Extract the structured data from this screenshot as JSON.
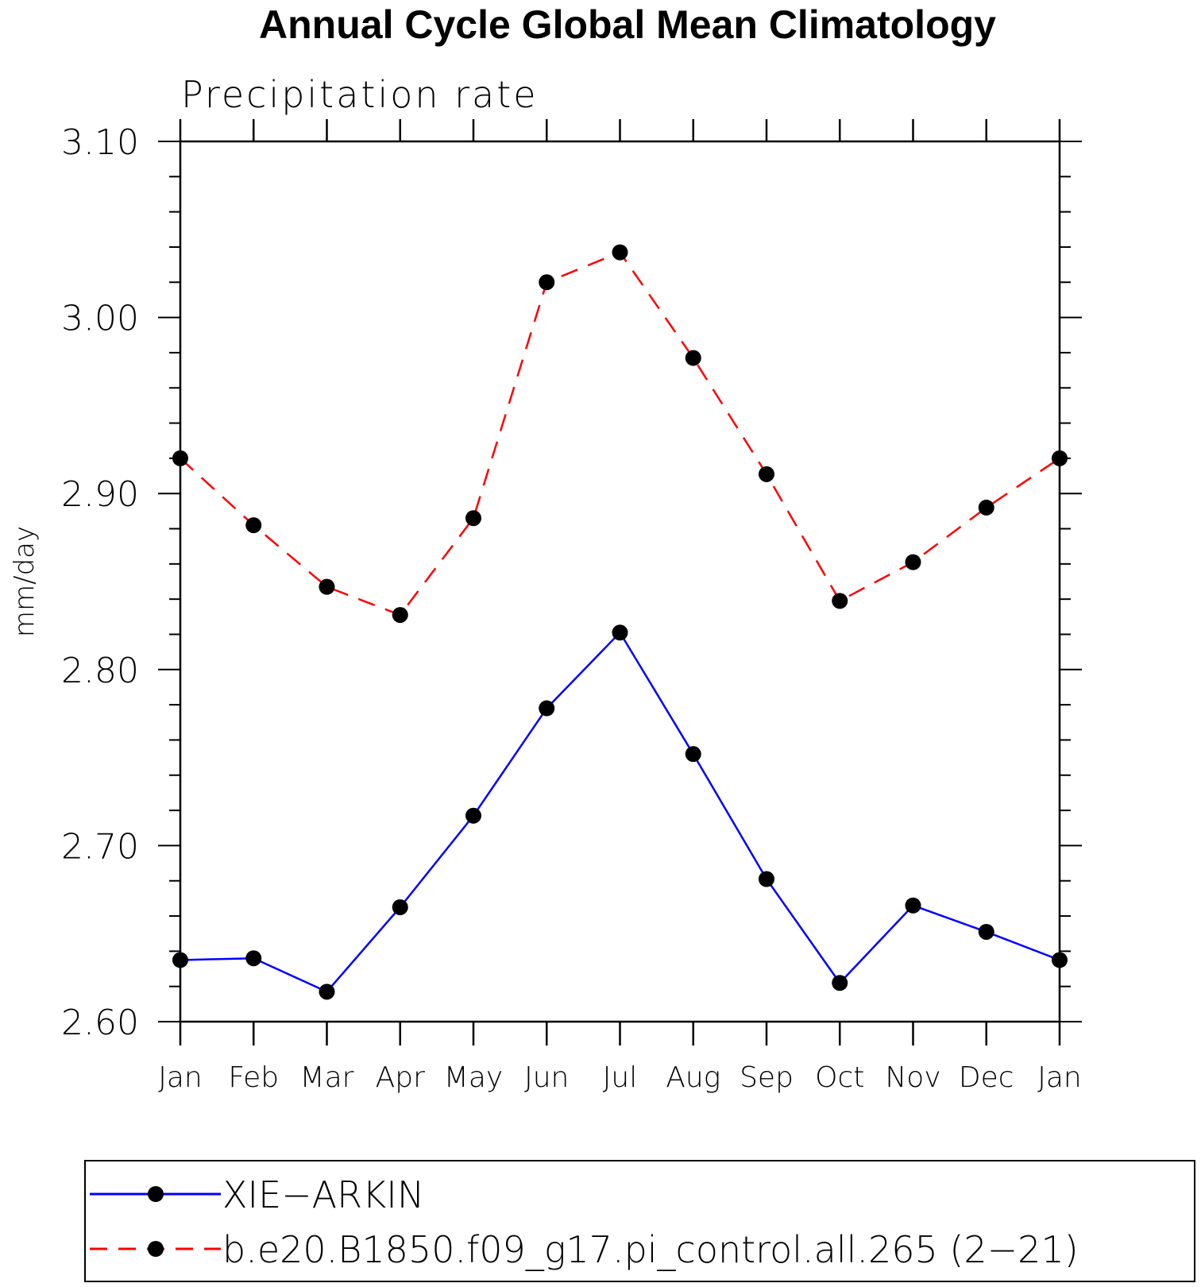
{
  "chart_data": {
    "type": "line",
    "title": "Annual Cycle Global Mean Climatology",
    "subtitle": "Precipitation rate",
    "xlabel": "",
    "ylabel": "mm/day",
    "categories": [
      "Jan",
      "Feb",
      "Mar",
      "Apr",
      "May",
      "Jun",
      "Jul",
      "Aug",
      "Sep",
      "Oct",
      "Nov",
      "Dec",
      "Jan"
    ],
    "ylim": [
      2.6,
      3.1
    ],
    "yticks": [
      "2.60",
      "2.70",
      "2.80",
      "2.90",
      "3.00",
      "3.10"
    ],
    "grid": false,
    "legend_placement": "bottom",
    "series": [
      {
        "name": "XIE−ARKIN",
        "color": "#0000ff",
        "dash": "solid",
        "marker": "filled-circle",
        "values": [
          2.635,
          2.636,
          2.617,
          2.665,
          2.717,
          2.778,
          2.821,
          2.752,
          2.681,
          2.622,
          2.666,
          2.651,
          2.635
        ]
      },
      {
        "name": "b.e20.B1850.f09_g17.pi_control.all.265 (2−21)",
        "color": "#ff0000",
        "dash": "dashed",
        "marker": "filled-circle",
        "values": [
          2.92,
          2.882,
          2.847,
          2.831,
          2.886,
          3.02,
          3.037,
          2.977,
          2.911,
          2.839,
          2.861,
          2.892,
          2.92
        ]
      }
    ]
  }
}
